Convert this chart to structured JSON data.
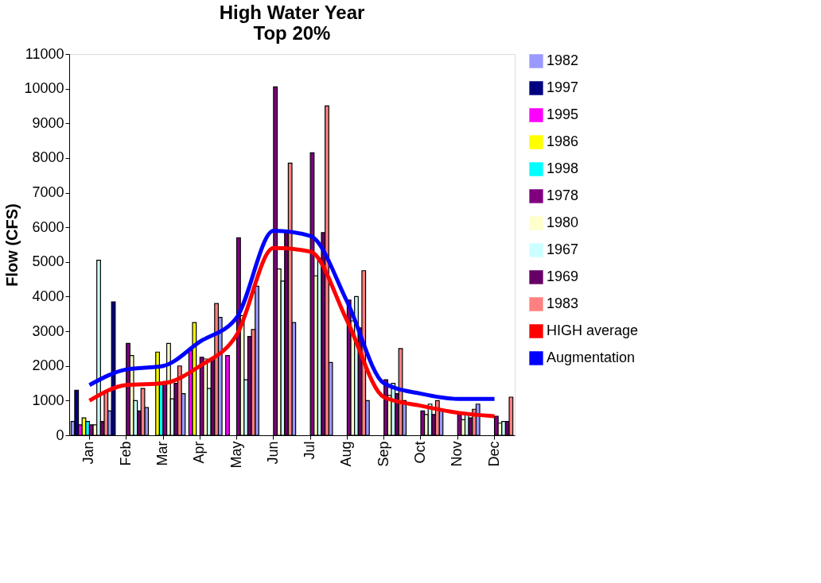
{
  "chart_data": {
    "type": "bar",
    "title": "High Water Year\nTop 20%",
    "ylabel": "Flow (CFS)",
    "categories": [
      "Jan",
      "Feb",
      "Mar",
      "Apr",
      "May",
      "Jun",
      "Jul",
      "Aug",
      "Sep",
      "Oct",
      "Nov",
      "Dec"
    ],
    "series": [
      {
        "name": "1982",
        "color": "#9999ff",
        "values": [
          400,
          700,
          800,
          1200,
          3400,
          4300,
          3250,
          2100,
          1000,
          1000,
          750,
          900
        ]
      },
      {
        "name": "1997",
        "color": "#000080",
        "values": [
          1300,
          3850,
          null,
          null,
          null,
          null,
          null,
          null,
          null,
          null,
          null,
          null
        ]
      },
      {
        "name": "1995",
        "color": "#ff00ff",
        "values": [
          300,
          null,
          null,
          2450,
          2300,
          null,
          null,
          null,
          null,
          null,
          null,
          null
        ]
      },
      {
        "name": "1986",
        "color": "#ffff00",
        "values": [
          500,
          null,
          2400,
          3250,
          null,
          null,
          null,
          null,
          null,
          null,
          null,
          null
        ]
      },
      {
        "name": "1998",
        "color": "#00ffff",
        "values": [
          400,
          null,
          1500,
          null,
          null,
          null,
          null,
          null,
          null,
          null,
          null,
          null
        ]
      },
      {
        "name": "1978",
        "color": "#800080",
        "values": [
          300,
          2650,
          1550,
          2250,
          5700,
          10050,
          8150,
          3900,
          1600,
          700,
          650,
          550
        ]
      },
      {
        "name": "1980",
        "color": "#ffffcc",
        "values": [
          300,
          2300,
          2650,
          2200,
          3450,
          4800,
          4600,
          3300,
          1150,
          600,
          450,
          350
        ]
      },
      {
        "name": "1967",
        "color": "#ccffff",
        "values": [
          5050,
          1000,
          1050,
          1350,
          1600,
          4450,
          5100,
          4000,
          1500,
          900,
          650,
          400
        ]
      },
      {
        "name": "1969",
        "color": "#660066",
        "values": [
          400,
          700,
          1500,
          2200,
          2850,
          5900,
          5850,
          3100,
          1200,
          600,
          500,
          400
        ]
      },
      {
        "name": "1983",
        "color": "#ff8080",
        "values": [
          1250,
          1350,
          2000,
          3800,
          3050,
          7850,
          9500,
          4750,
          2500,
          1000,
          750,
          1100
        ]
      },
      {
        "name": "HIGH average",
        "type": "line",
        "color": "#ff0000",
        "values": [
          1000,
          1450,
          1500,
          2000,
          2900,
          5400,
          5300,
          3300,
          1100,
          850,
          650,
          550
        ]
      },
      {
        "name": "Augmentation",
        "type": "line",
        "color": "#0000ff",
        "values": [
          1450,
          1900,
          2000,
          2700,
          3400,
          5900,
          5750,
          3850,
          1500,
          1200,
          1050,
          1050
        ]
      }
    ],
    "ylim": [
      0,
      11000
    ],
    "yticks": [
      0,
      1000,
      2000,
      3000,
      4000,
      5000,
      6000,
      7000,
      8000,
      9000,
      10000,
      11000
    ],
    "grid": false,
    "legend": "right"
  }
}
